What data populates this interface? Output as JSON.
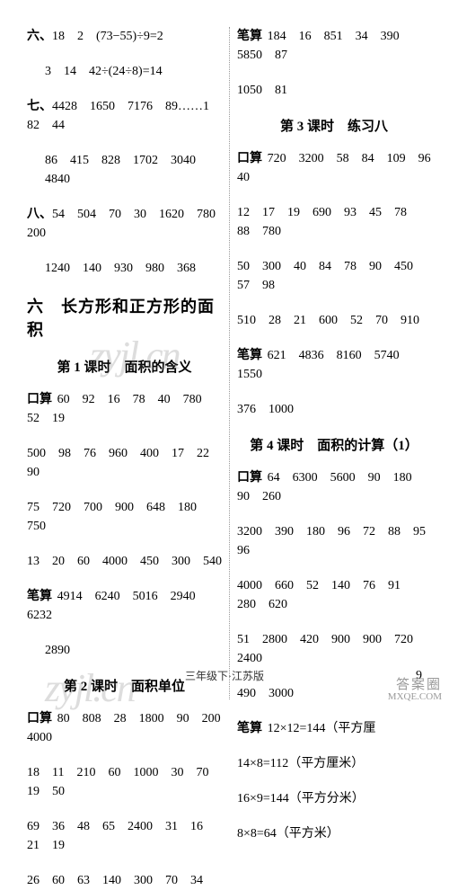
{
  "left": {
    "line1_prefix": "六、",
    "line1_text": "18　2　(73−55)÷9=2",
    "line2": "3　14　42÷(24÷8)=14",
    "line3_prefix": "七、",
    "line3_text": "4428　1650　7176　89……1　82　44",
    "line4": "86　415　828　1702　3040　4840",
    "line5_prefix": "八、",
    "line5_text": "54　504　70　30　1620　780　200",
    "line6": "1240　140　930　980　368",
    "section_title": "六　长方形和正方形的面积",
    "lesson1_title": "第 1 课时　面积的含义",
    "l1_kousuan_label": "口算",
    "l1_row1": "60　92　16　78　40　780　52　19",
    "l1_row2": "500　98　76　960　400　17　22　90",
    "l1_row3": "75　720　700　900　648　180　750",
    "l1_row4": "13　20　60　4000　450　300　540",
    "l1_bisuan_label": "笔算",
    "l1_bisuan_row1": "4914　6240　5016　2940　6232",
    "l1_bisuan_row2": "2890",
    "lesson2_title": "第 2 课时　面积单位",
    "l2_kousuan_label": "口算",
    "l2_row1": "80　808　28　1800　90　200　4000",
    "l2_row2": "18　11　210　60　1000　30　70　19　50",
    "l2_row3": "69　36　48　65　2400　31　16　21　19",
    "l2_row4": "26　60　63　140　300　70　34"
  },
  "right": {
    "r_bisuan_label": "笔算",
    "r_row1": "184　16　851　34　390　5850　87",
    "r_row2": "1050　81",
    "lesson3_title": "第 3 课时　练习八",
    "l3_kousuan_label": "口算",
    "l3_row1": "720　3200　58　84　109　96　40",
    "l3_row2": "12　17　19　690　93　45　78　88　780",
    "l3_row3": "50　300　40　84　78　90　450　57　98",
    "l3_row4": "510　28　21　600　52　70　910",
    "l3_bisuan_label": "笔算",
    "l3_bisuan_row1": "621　4836　8160　5740　1550",
    "l3_bisuan_row2": "376　1000",
    "lesson4_title": "第 4 课时　面积的计算（1）",
    "l4_kousuan_label": "口算",
    "l4_row1": "64　6300　5600　90　180　90　260",
    "l4_row2": "3200　390　180　96　72　88　95　96",
    "l4_row3": "4000　660　52　140　76　91　280　620",
    "l4_row4": "51　2800　420　900　900　720　2400",
    "l4_row5": "490　3000",
    "l4_bisuan_label": "笔算",
    "l4_bisuan_row1": "12×12=144（平方厘",
    "l4_bisuan_row2": "14×8=112（平方厘米）",
    "l4_bisuan_row3": "16×9=144（平方分米）",
    "l4_bisuan_row4": "8×8=64（平方米）"
  },
  "footer": "三年级下·江苏版",
  "page_num": "9",
  "watermark": "zyjl.cn",
  "corner_top": "答案圈",
  "corner_bot": "MXQE.COM"
}
